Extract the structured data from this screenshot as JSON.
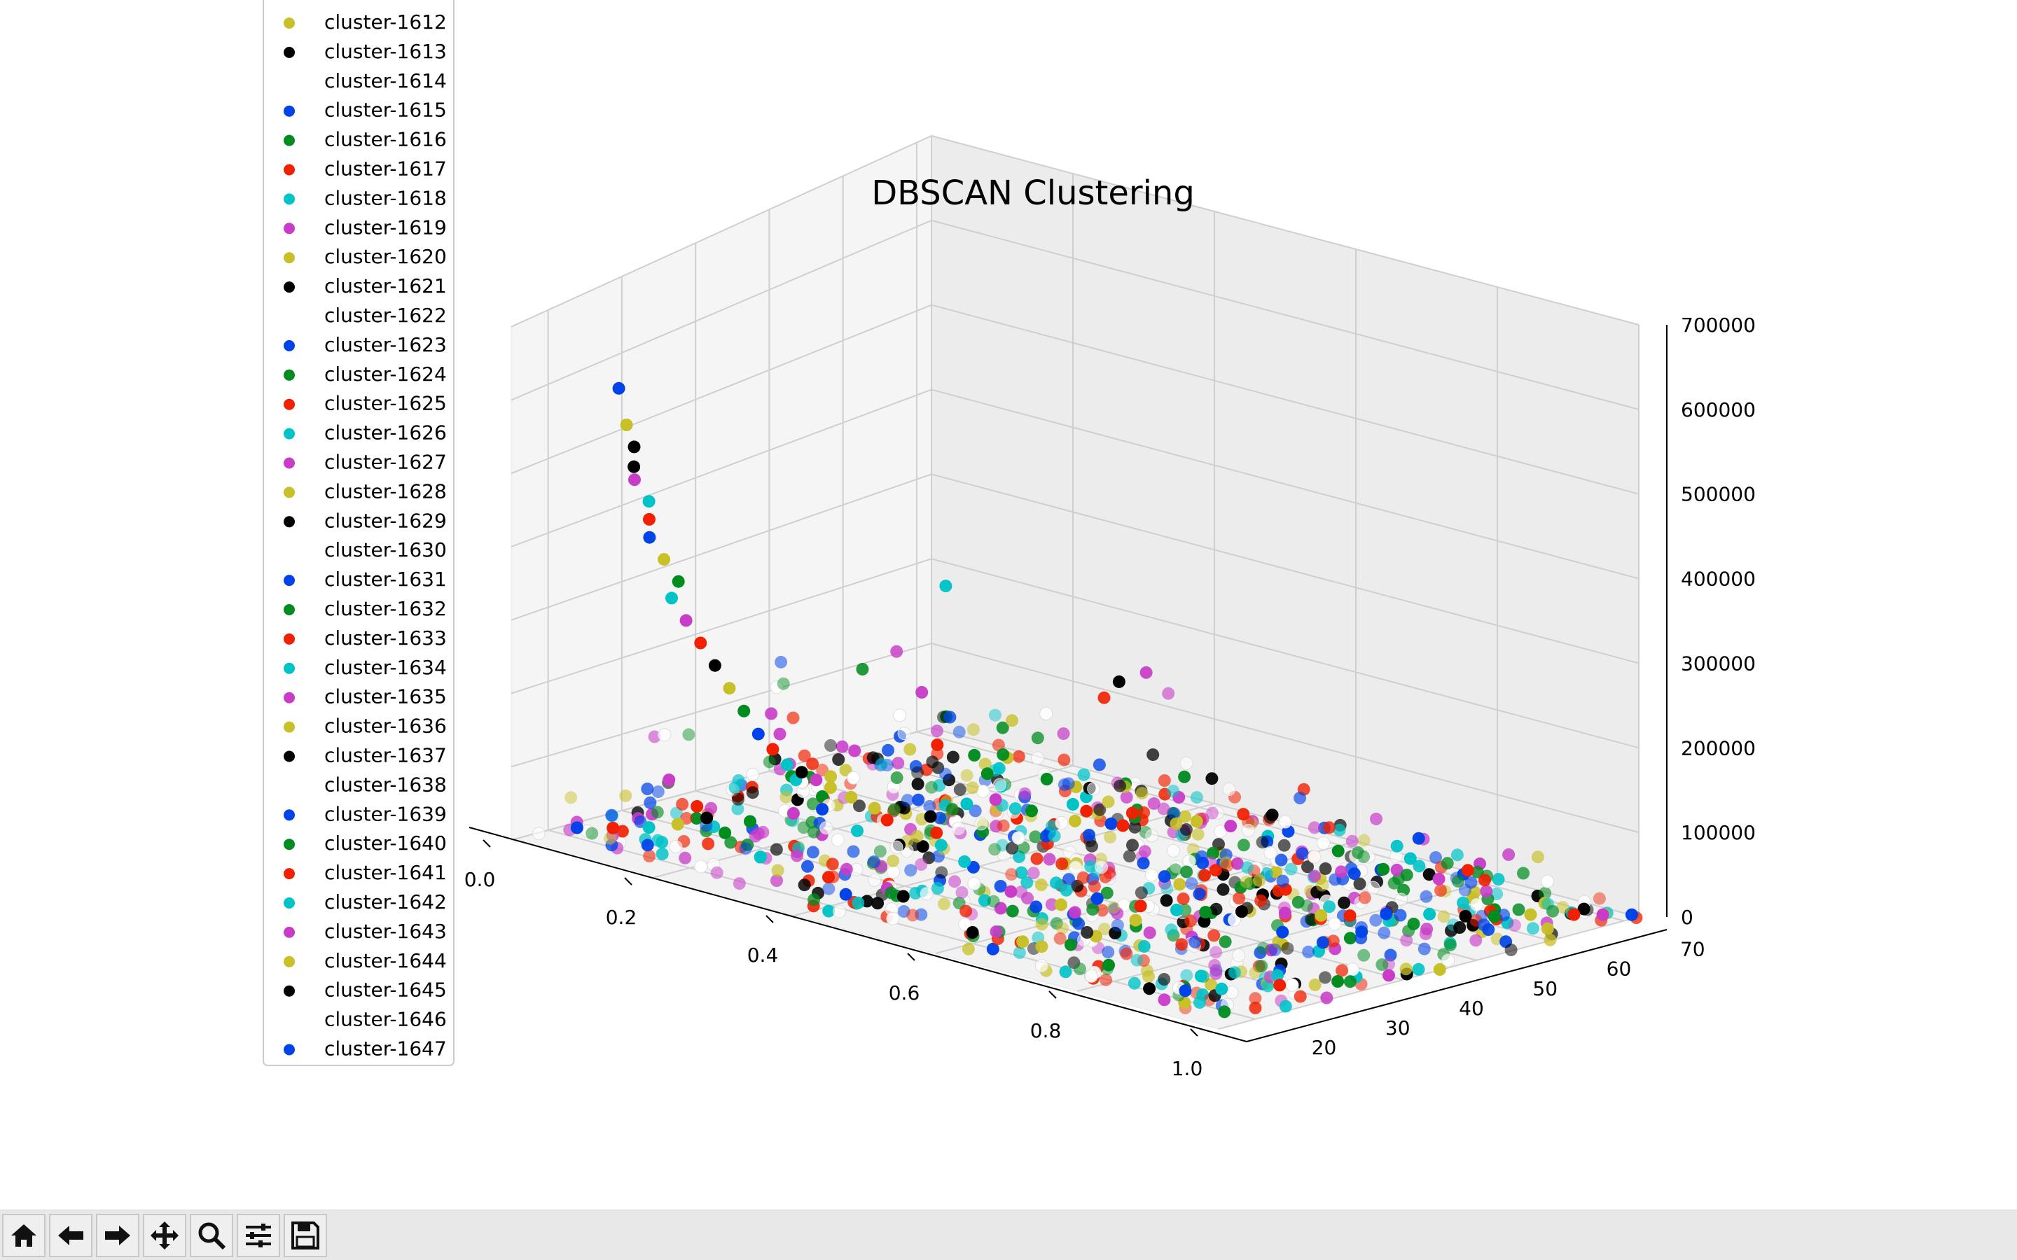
{
  "chart_data": {
    "type": "scatter",
    "dimensions": 3,
    "title": "DBSCAN Clustering",
    "xlabel": "",
    "ylabel": "",
    "zlabel": "",
    "xlim": [
      0.0,
      1.0
    ],
    "ylim": [
      15,
      72
    ],
    "zlim": [
      0,
      700000
    ],
    "x_ticks": [
      "0.0",
      "0.2",
      "0.4",
      "0.6",
      "0.8",
      "1.0"
    ],
    "y_ticks": [
      "20",
      "30",
      "40",
      "50",
      "60",
      "70"
    ],
    "z_ticks": [
      "0",
      "100000",
      "200000",
      "300000",
      "400000",
      "500000",
      "600000",
      "700000"
    ],
    "grid": true,
    "legend_placement": "upper-left",
    "color_cycle": [
      "#ffffff",
      "#0043e8",
      "#008c1f",
      "#f02000",
      "#00c3c8",
      "#c83cc8",
      "#c8c028",
      "#000000"
    ],
    "series": [
      {
        "name": "cluster-1612",
        "color": "#c8c028"
      },
      {
        "name": "cluster-1613",
        "color": "#000000"
      },
      {
        "name": "cluster-1614",
        "color": "#ffffff"
      },
      {
        "name": "cluster-1615",
        "color": "#0043e8"
      },
      {
        "name": "cluster-1616",
        "color": "#008c1f"
      },
      {
        "name": "cluster-1617",
        "color": "#f02000"
      },
      {
        "name": "cluster-1618",
        "color": "#00c3c8"
      },
      {
        "name": "cluster-1619",
        "color": "#c83cc8"
      },
      {
        "name": "cluster-1620",
        "color": "#c8c028"
      },
      {
        "name": "cluster-1621",
        "color": "#000000"
      },
      {
        "name": "cluster-1622",
        "color": "#ffffff"
      },
      {
        "name": "cluster-1623",
        "color": "#0043e8"
      },
      {
        "name": "cluster-1624",
        "color": "#008c1f"
      },
      {
        "name": "cluster-1625",
        "color": "#f02000"
      },
      {
        "name": "cluster-1626",
        "color": "#00c3c8"
      },
      {
        "name": "cluster-1627",
        "color": "#c83cc8"
      },
      {
        "name": "cluster-1628",
        "color": "#c8c028"
      },
      {
        "name": "cluster-1629",
        "color": "#000000"
      },
      {
        "name": "cluster-1630",
        "color": "#ffffff"
      },
      {
        "name": "cluster-1631",
        "color": "#0043e8"
      },
      {
        "name": "cluster-1632",
        "color": "#008c1f"
      },
      {
        "name": "cluster-1633",
        "color": "#f02000"
      },
      {
        "name": "cluster-1634",
        "color": "#00c3c8"
      },
      {
        "name": "cluster-1635",
        "color": "#c83cc8"
      },
      {
        "name": "cluster-1636",
        "color": "#c8c028"
      },
      {
        "name": "cluster-1637",
        "color": "#000000"
      },
      {
        "name": "cluster-1638",
        "color": "#ffffff"
      },
      {
        "name": "cluster-1639",
        "color": "#0043e8"
      },
      {
        "name": "cluster-1640",
        "color": "#008c1f"
      },
      {
        "name": "cluster-1641",
        "color": "#f02000"
      },
      {
        "name": "cluster-1642",
        "color": "#00c3c8"
      },
      {
        "name": "cluster-1643",
        "color": "#c83cc8"
      },
      {
        "name": "cluster-1644",
        "color": "#c8c028"
      },
      {
        "name": "cluster-1645",
        "color": "#000000"
      },
      {
        "name": "cluster-1646",
        "color": "#ffffff"
      },
      {
        "name": "cluster-1647",
        "color": "#0043e8"
      }
    ],
    "points": [
      [
        0.02,
        22,
        3000,
        1
      ],
      [
        0.05,
        24,
        5000,
        3
      ],
      [
        0.08,
        26,
        8000,
        4
      ],
      [
        0.1,
        28,
        12000,
        6
      ],
      [
        0.12,
        30,
        20000,
        7
      ],
      [
        0.15,
        33,
        15000,
        2
      ],
      [
        0.18,
        36,
        25000,
        5
      ],
      [
        0.2,
        38,
        30000,
        1
      ],
      [
        0.22,
        40,
        45000,
        6
      ],
      [
        0.25,
        42,
        18000,
        3
      ],
      [
        0.28,
        45,
        22000,
        7
      ],
      [
        0.3,
        48,
        35000,
        4
      ],
      [
        0.32,
        50,
        40000,
        5
      ],
      [
        0.35,
        52,
        28000,
        2
      ],
      [
        0.38,
        55,
        15000,
        6
      ],
      [
        0.4,
        58,
        9000,
        1
      ],
      [
        0.1,
        20,
        620000,
        1
      ],
      [
        0.09,
        22,
        560000,
        6
      ],
      [
        0.08,
        24,
        520000,
        7
      ],
      [
        0.09,
        23,
        500000,
        7
      ],
      [
        0.07,
        25,
        470000,
        5
      ],
      [
        0.08,
        26,
        440000,
        4
      ],
      [
        0.07,
        27,
        410000,
        3
      ],
      [
        0.06,
        28,
        380000,
        1
      ],
      [
        0.07,
        29,
        350000,
        6
      ],
      [
        0.08,
        30,
        320000,
        2
      ],
      [
        0.06,
        31,
        290000,
        4
      ],
      [
        0.07,
        32,
        260000,
        5
      ],
      [
        0.08,
        33,
        230000,
        3
      ],
      [
        0.09,
        34,
        200000,
        7
      ],
      [
        0.1,
        35,
        170000,
        6
      ],
      [
        0.11,
        36,
        140000,
        2
      ],
      [
        0.12,
        37,
        110000,
        1
      ],
      [
        0.13,
        38,
        90000,
        3
      ],
      [
        0.14,
        39,
        70000,
        4
      ],
      [
        0.15,
        40,
        60000,
        7
      ],
      [
        0.16,
        41,
        50000,
        5
      ],
      [
        0.17,
        42,
        40000,
        6
      ],
      [
        0.3,
        44,
        120000,
        3
      ],
      [
        0.35,
        46,
        90000,
        2
      ],
      [
        0.45,
        48,
        70000,
        4
      ],
      [
        0.5,
        50,
        50000,
        3
      ],
      [
        0.55,
        30,
        30000,
        5
      ],
      [
        0.6,
        32,
        20000,
        6
      ],
      [
        0.62,
        35,
        25000,
        1
      ],
      [
        0.65,
        38,
        15000,
        3
      ],
      [
        0.68,
        40,
        12000,
        4
      ],
      [
        0.7,
        42,
        9000,
        2
      ],
      [
        0.72,
        45,
        7000,
        7
      ],
      [
        0.75,
        48,
        5000,
        5
      ],
      [
        0.78,
        50,
        4000,
        6
      ],
      [
        0.8,
        52,
        3500,
        3
      ],
      [
        0.82,
        55,
        3000,
        1
      ],
      [
        0.85,
        58,
        2500,
        4
      ],
      [
        0.88,
        60,
        2000,
        7
      ],
      [
        0.9,
        62,
        1500,
        2
      ],
      [
        0.92,
        65,
        1200,
        6
      ],
      [
        0.95,
        68,
        1000,
        3
      ],
      [
        0.97,
        70,
        800,
        5
      ],
      [
        0.99,
        72,
        500,
        1
      ],
      [
        0.7,
        60,
        40000,
        2
      ],
      [
        0.75,
        65,
        30000,
        4
      ],
      [
        0.8,
        68,
        20000,
        3
      ],
      [
        0.6,
        55,
        60000,
        5
      ],
      [
        0.5,
        60,
        30000,
        6
      ],
      [
        0.45,
        25,
        12000,
        7
      ],
      [
        0.4,
        22,
        10000,
        1
      ],
      [
        0.9,
        25,
        2000,
        4
      ],
      [
        0.93,
        30,
        1500,
        3
      ],
      [
        0.96,
        35,
        1000,
        2
      ],
      [
        0.98,
        40,
        900,
        5
      ],
      [
        1.0,
        45,
        700,
        6
      ],
      [
        0.85,
        20,
        3000,
        7
      ],
      [
        0.88,
        22,
        2500,
        1
      ],
      [
        0.3,
        20,
        40000,
        4
      ],
      [
        0.25,
        20,
        60000,
        2
      ],
      [
        0.2,
        21,
        80000,
        3
      ],
      [
        0.15,
        22,
        100000,
        5
      ],
      [
        0.6,
        20,
        15000,
        7
      ],
      [
        0.65,
        22,
        10000,
        6
      ]
    ]
  },
  "toolbar": {
    "buttons": [
      {
        "name": "home-icon"
      },
      {
        "name": "back-arrow-icon"
      },
      {
        "name": "forward-arrow-icon"
      },
      {
        "name": "pan-icon"
      },
      {
        "name": "zoom-icon"
      },
      {
        "name": "configure-subplots-icon"
      },
      {
        "name": "save-icon"
      }
    ]
  }
}
